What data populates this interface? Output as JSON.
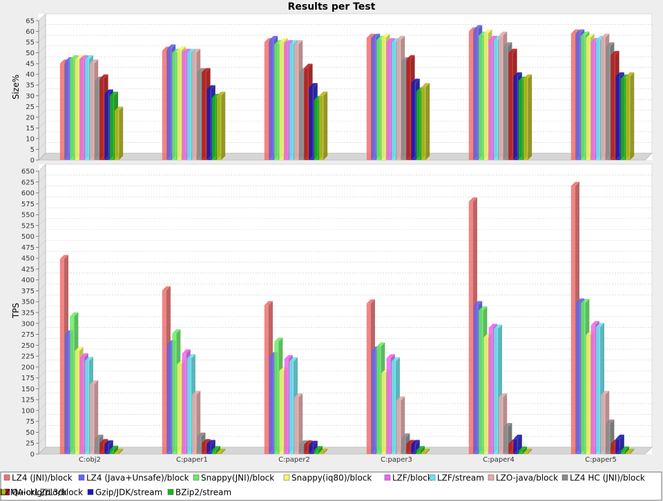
{
  "chart_data": {
    "type": "bar",
    "title": "Results per Test",
    "categories": [
      "C:obj2",
      "C:paper1",
      "C:paper2",
      "C:paper3",
      "C:paper4",
      "C:paper5"
    ],
    "series": [
      {
        "name": "LZ4 (JNI)/block",
        "color": "#f07070"
      },
      {
        "name": "LZ4 (Java+Unsafe)/block",
        "color": "#6464ee"
      },
      {
        "name": "Snappy(JNI)/block",
        "color": "#64ee64"
      },
      {
        "name": "Snappy(iq80)/block",
        "color": "#f5f56a"
      },
      {
        "name": "LZF/block",
        "color": "#ee64ee"
      },
      {
        "name": "LZF/stream",
        "color": "#64e6ee"
      },
      {
        "name": "LZO-java/block",
        "color": "#e8aaaa"
      },
      {
        "name": "LZ4 HC (JNI)/block",
        "color": "#8a8a8a"
      },
      {
        "name": "QuickLZ/L3/block",
        "color": "#c01818"
      },
      {
        "name": "Gzip/JDK/stream",
        "color": "#1818b8"
      },
      {
        "name": "BZip2/stream",
        "color": "#18b818"
      },
      {
        "name": "LZMA-orig/block",
        "color": "#b8b818"
      }
    ],
    "panels": [
      {
        "ylabel": "Size%",
        "ylim": [
          0,
          65
        ],
        "ticks": [
          "0",
          "5",
          "10",
          "15",
          "20",
          "25",
          "30",
          "35",
          "40",
          "45",
          "50",
          "55",
          "60",
          "65"
        ],
        "values": [
          [
            45,
            51,
            55,
            57,
            60,
            59
          ],
          [
            46,
            52,
            56,
            57,
            61,
            59
          ],
          [
            47,
            50,
            54,
            56,
            58,
            58
          ],
          [
            47,
            51,
            55,
            57,
            59,
            57
          ],
          [
            47,
            50,
            54,
            55,
            56,
            55
          ],
          [
            47,
            50,
            54,
            55,
            56,
            56
          ],
          [
            45,
            50,
            54,
            56,
            58,
            57
          ],
          [
            37,
            41,
            41,
            46,
            53,
            53
          ],
          [
            38,
            41,
            43,
            47,
            50,
            49
          ],
          [
            31,
            33,
            34,
            36,
            39,
            39
          ],
          [
            30,
            29,
            28,
            32,
            37,
            38
          ],
          [
            23,
            30,
            30,
            34,
            38,
            39
          ]
        ]
      },
      {
        "ylabel": "TPS",
        "ylim": [
          0,
          650
        ],
        "ticks": [
          "0",
          "25",
          "50",
          "75",
          "100",
          "125",
          "150",
          "175",
          "200",
          "225",
          "250",
          "275",
          "300",
          "325",
          "350",
          "375",
          "400",
          "425",
          "450",
          "475",
          "500",
          "525",
          "550",
          "575",
          "600",
          "625",
          "650"
        ],
        "values": [
          [
            448,
            376,
            342,
            346,
            580,
            616
          ],
          [
            275,
            252,
            225,
            238,
            342,
            348
          ],
          [
            316,
            277,
            258,
            247,
            330,
            347
          ],
          [
            237,
            206,
            191,
            186,
            268,
            273
          ],
          [
            222,
            231,
            218,
            220,
            290,
            296
          ],
          [
            214,
            220,
            213,
            213,
            288,
            292
          ],
          [
            160,
            136,
            130,
            123,
            130,
            136
          ],
          [
            35,
            40,
            22,
            38,
            62,
            70
          ],
          [
            25,
            25,
            22,
            23,
            24,
            24
          ],
          [
            22,
            23,
            21,
            23,
            35,
            35
          ],
          [
            10,
            9,
            9,
            9,
            8,
            8
          ],
          [
            3,
            3,
            3,
            3,
            3,
            3
          ]
        ]
      }
    ]
  }
}
